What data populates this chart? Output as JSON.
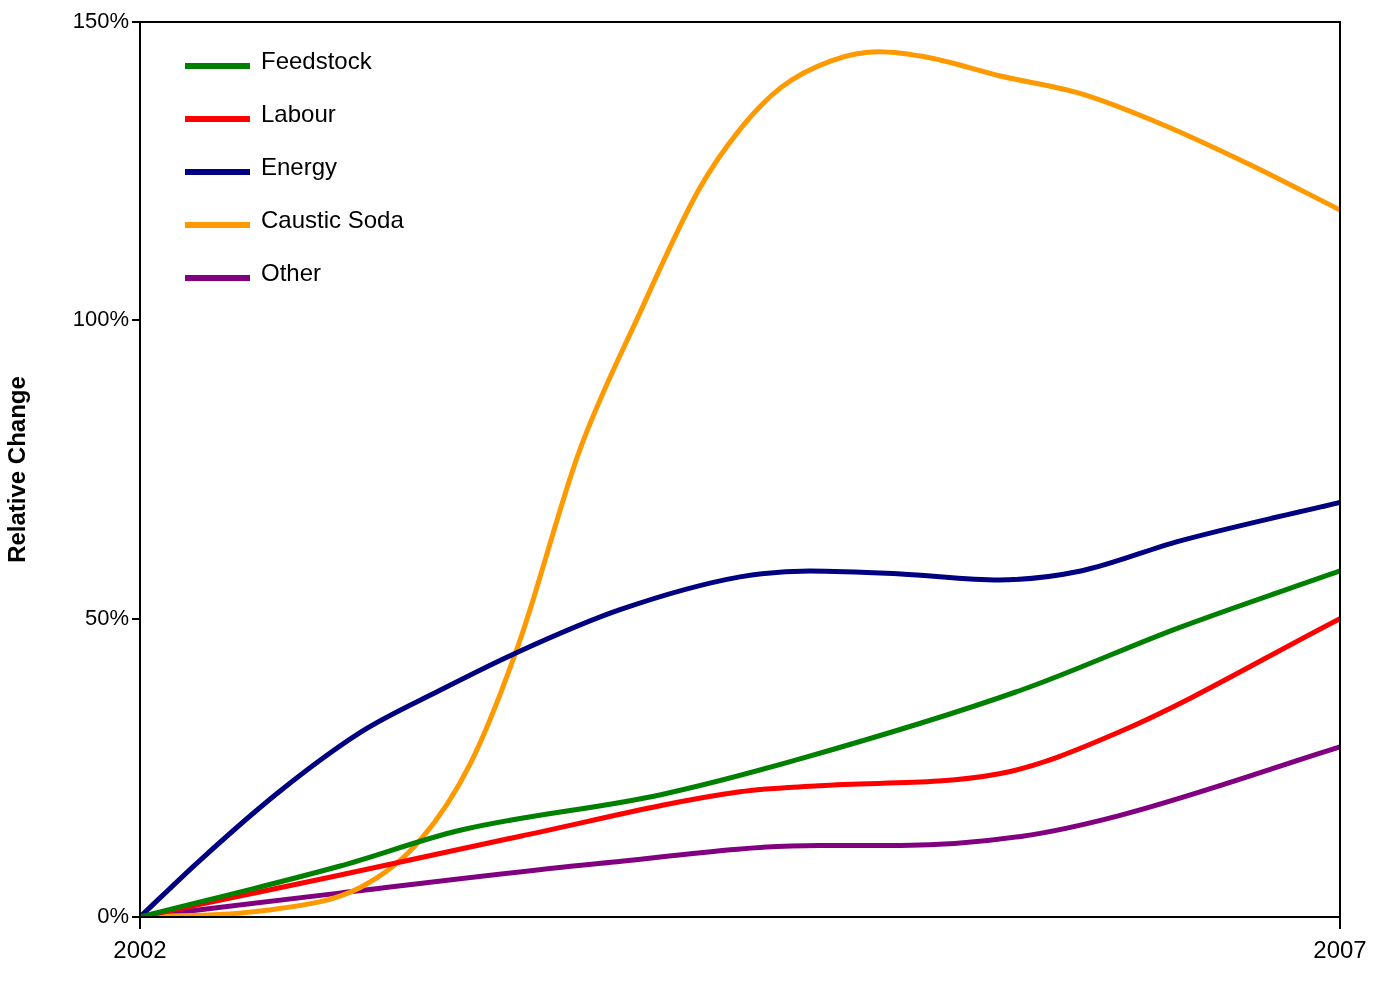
{
  "chart_data": {
    "type": "line",
    "ylabel": "Relative Change",
    "xlim": [
      2002,
      2007
    ],
    "xticks": [
      2002,
      2007
    ],
    "ylim": [
      0,
      150
    ],
    "yticks": [
      {
        "value": 0,
        "label": "0%"
      },
      {
        "value": 50,
        "label": "50%"
      },
      {
        "value": 100,
        "label": "100%"
      },
      {
        "value": 150,
        "label": "150%"
      }
    ],
    "grid": false,
    "legend": "top left",
    "marker": "none",
    "line_style": "solid",
    "series": [
      {
        "name": "Feedstock",
        "color": "#008000",
        "x": [
          2002,
          2002.83,
          2003.33,
          2004.17,
          2004.75,
          2005.67,
          2006.33,
          2007
        ],
        "values": [
          0,
          8.5,
          14.5,
          20.5,
          26.5,
          38,
          48.5,
          58
        ]
      },
      {
        "name": "Labour",
        "color": "#ff0000",
        "x": [
          2002,
          2002.83,
          2003.58,
          2004.5,
          2004.83,
          2005.58,
          2006.08,
          2007
        ],
        "values": [
          0,
          7,
          13.5,
          21,
          22,
          24,
          31,
          50
        ]
      },
      {
        "name": "Energy",
        "color": "#000080",
        "x": [
          2002,
          2002.25,
          2002.58,
          2002.92,
          2003.25,
          2003.58,
          2004,
          2004.5,
          2004.79,
          2005.17,
          2005.58,
          2005.92,
          2006.33,
          2007
        ],
        "values": [
          0,
          9.5,
          21,
          31,
          38,
          44.5,
          51.5,
          57,
          58,
          57.5,
          56.5,
          58,
          63,
          69.5
        ]
      },
      {
        "name": "Caustic Soda",
        "color": "#ff9900",
        "x": [
          2002,
          2002.5,
          2002.92,
          2003.17,
          2003.38,
          2003.58,
          2003.83,
          2004.08,
          2004.33,
          2004.5,
          2004.67,
          2004.88,
          2005.08,
          2005.29,
          2005.58,
          2005.92,
          2006.25,
          2006.63,
          2007
        ],
        "values": [
          0,
          1,
          5,
          13,
          26,
          46,
          78,
          101,
          122,
          132,
          139,
          143.5,
          145,
          144,
          141,
          138,
          133,
          126,
          118.5
        ]
      },
      {
        "name": "Other",
        "color": "#800080",
        "x": [
          2002,
          2002.83,
          2003.92,
          2004.83,
          2005.17,
          2005.67,
          2006.08,
          2007
        ],
        "values": [
          0,
          4,
          9,
          12,
          12,
          13.5,
          17,
          28.5
        ]
      }
    ]
  }
}
